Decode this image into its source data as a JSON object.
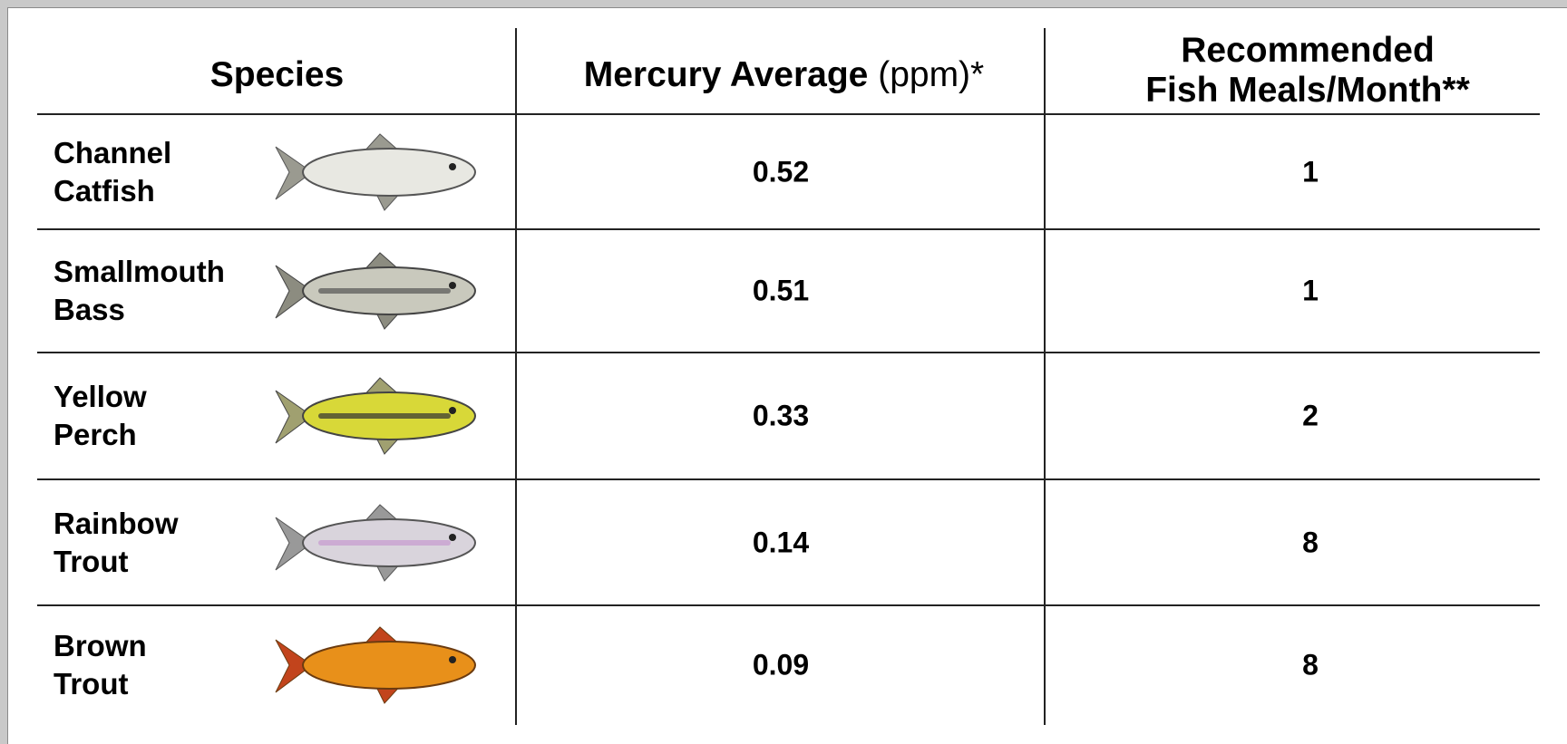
{
  "table": {
    "header": {
      "species": "Species",
      "mercury": {
        "label": "Mercury Average",
        "unit": "(ppm)*"
      },
      "meals": [
        "Recommended",
        "Fish Meals/Month**"
      ]
    },
    "rows": [
      {
        "species": "Channel Catfish",
        "mercury": 0.52,
        "meals": 1
      },
      {
        "species": "Smallmouth Bass",
        "mercury": 0.51,
        "meals": 1
      },
      {
        "species": "Yellow Perch",
        "mercury": 0.33,
        "meals": 2
      },
      {
        "species": "Rainbow Trout",
        "mercury": 0.14,
        "meals": 8
      },
      {
        "species": "Brown Trout",
        "mercury": 0.09,
        "meals": 8
      }
    ]
  }
}
